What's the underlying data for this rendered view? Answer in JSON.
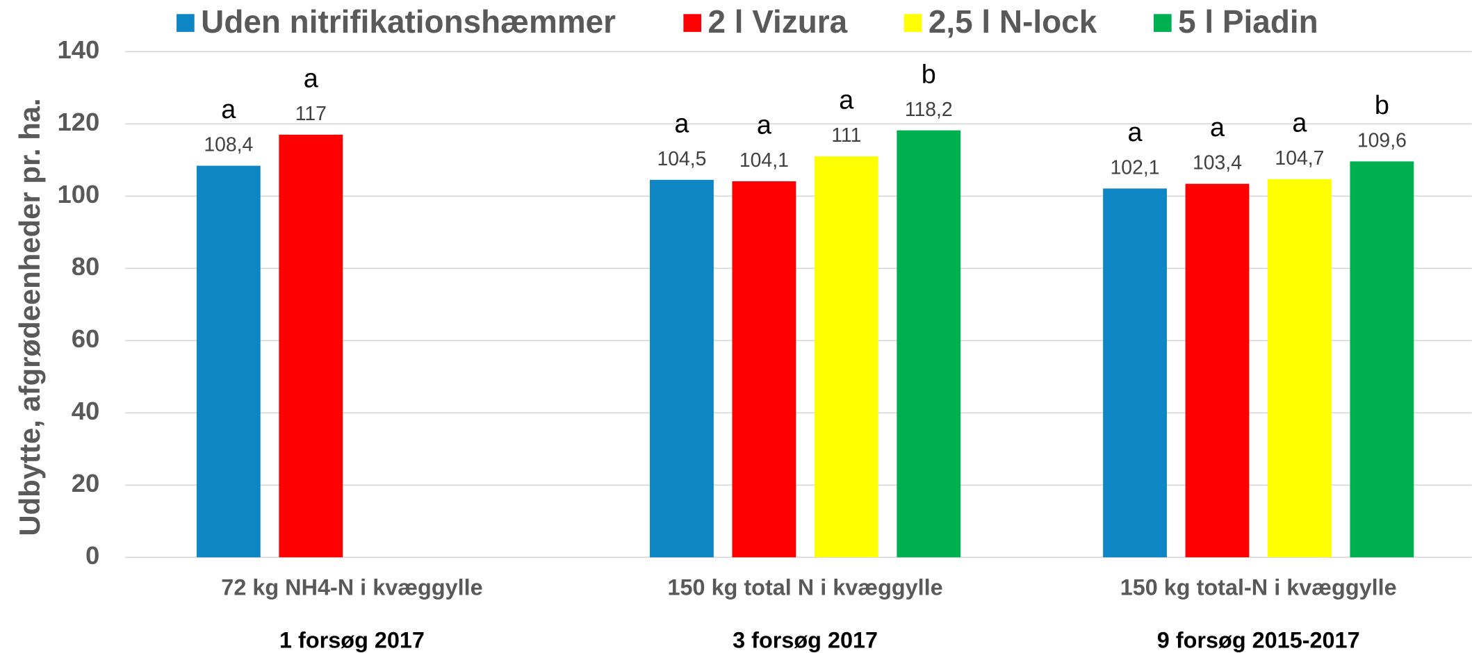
{
  "chart_data": {
    "type": "bar",
    "y_label": "Udbytte, afgrødeenheder pr. ha.",
    "categories": [
      "72 kg NH4-N i kvæggylle",
      "150 kg total N i kvæggylle",
      "150 kg total-N i kvæggylle"
    ],
    "subcategories": [
      "1 forsøg 2017",
      "3 forsøg 2017",
      "9 forsøg 2015-2017"
    ],
    "series": [
      {
        "name": "Uden nitrifikationshæmmer",
        "color": "#0e86c4",
        "values": [
          108.4,
          104.5,
          102.1
        ],
        "value_labels": [
          "108,4",
          "104,5",
          "102,1"
        ],
        "letters": [
          "a",
          "a",
          "a"
        ]
      },
      {
        "name": "2 l Vizura",
        "color": "#ff0000",
        "values": [
          117,
          104.1,
          103.4
        ],
        "value_labels": [
          "117",
          "104,1",
          "103,4"
        ],
        "letters": [
          "a",
          "a",
          "a"
        ]
      },
      {
        "name": "2,5 l N-lock",
        "color": "#ffff00",
        "values": [
          null,
          111,
          104.7
        ],
        "value_labels": [
          null,
          "111",
          "104,7"
        ],
        "letters": [
          null,
          "a",
          "a"
        ]
      },
      {
        "name": "5 l Piadin",
        "color": "#00b050",
        "values": [
          null,
          118.2,
          109.6
        ],
        "value_labels": [
          null,
          "118,2",
          "109,6"
        ],
        "letters": [
          null,
          "b",
          "b"
        ]
      }
    ],
    "ylim": [
      0,
      140
    ],
    "yticks": [
      0,
      20,
      40,
      60,
      80,
      100,
      120,
      140
    ],
    "grid": true,
    "legend": "top"
  }
}
